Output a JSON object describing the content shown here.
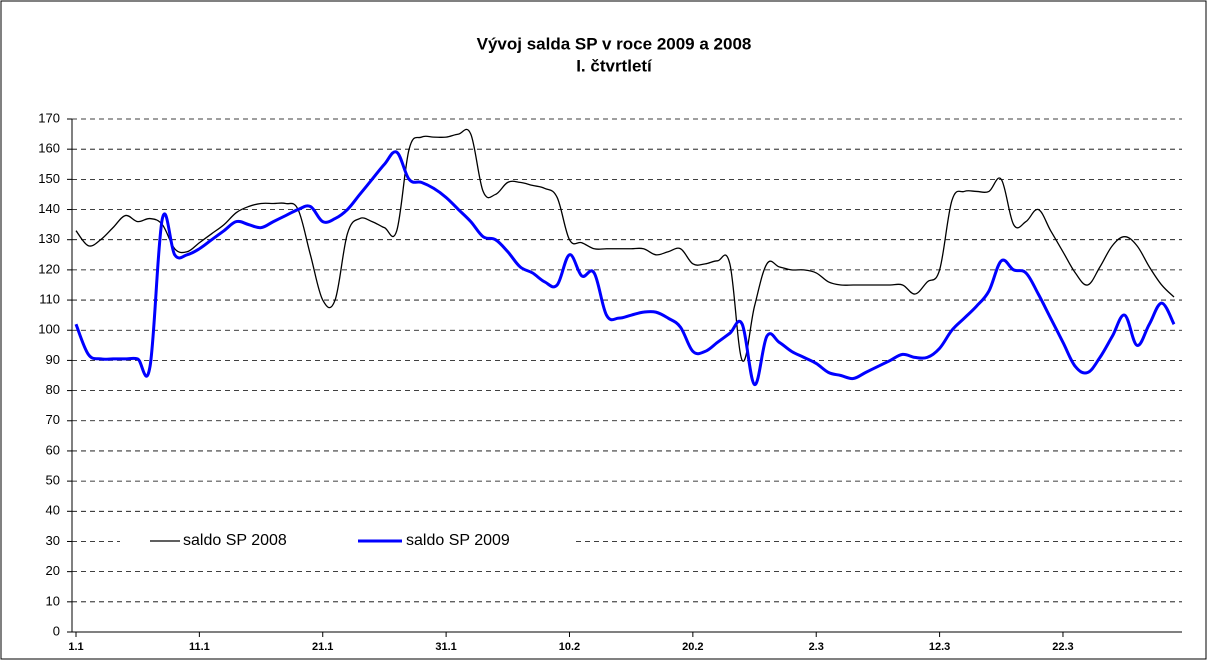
{
  "chart_data": {
    "type": "line",
    "title": "Vývoj salda SP v roce 2009 a 2008",
    "subtitle": "I. čtvrtletí",
    "categories": [
      "1.1",
      null,
      null,
      null,
      null,
      null,
      null,
      null,
      null,
      null,
      "11.1",
      null,
      null,
      null,
      null,
      null,
      null,
      null,
      null,
      null,
      "21.1",
      null,
      null,
      null,
      null,
      null,
      null,
      null,
      null,
      null,
      "31.1",
      null,
      null,
      null,
      null,
      null,
      null,
      null,
      null,
      null,
      "10.2",
      null,
      null,
      null,
      null,
      null,
      null,
      null,
      null,
      null,
      "20.2",
      null,
      null,
      null,
      null,
      null,
      null,
      null,
      null,
      null,
      "2.3",
      null,
      null,
      null,
      null,
      null,
      null,
      null,
      null,
      null,
      "12.3",
      null,
      null,
      null,
      null,
      null,
      null,
      null,
      null,
      null,
      "22.3",
      null,
      null,
      null,
      null,
      null,
      null,
      null,
      null,
      null
    ],
    "series": [
      {
        "name": "saldo SP 2008",
        "color": "#000000",
        "width": 1.3,
        "values": [
          133,
          128,
          130,
          134,
          138,
          136,
          137,
          135,
          127,
          126,
          129,
          132,
          135,
          139,
          141,
          142,
          142,
          142,
          140,
          125,
          110,
          110,
          132,
          137,
          136,
          134,
          133,
          160,
          164,
          164,
          164,
          165,
          165,
          146,
          145,
          149,
          149,
          148,
          147,
          144,
          130,
          129,
          127,
          127,
          127,
          127,
          127,
          125,
          126,
          127,
          122,
          122,
          123,
          122,
          90,
          108,
          122,
          121,
          120,
          120,
          119,
          116,
          115,
          115,
          115,
          115,
          115,
          115,
          112,
          116,
          120,
          143,
          146,
          146,
          146,
          150,
          135,
          136,
          140,
          133,
          126,
          119,
          115,
          121,
          128,
          131,
          128,
          121,
          115,
          111
        ]
      },
      {
        "name": "saldo SP 2009",
        "color": "#0000ff",
        "width": 3,
        "values": [
          102,
          92,
          90.5,
          90.5,
          90.5,
          90.5,
          88,
          137,
          125,
          125,
          127,
          130,
          133,
          136,
          135,
          134,
          136,
          138,
          140,
          141,
          136,
          137,
          140,
          145,
          150,
          155,
          159,
          150,
          149,
          147,
          144,
          140,
          136,
          131,
          130,
          126,
          121,
          119,
          116,
          115,
          125,
          118,
          119,
          105,
          104,
          105,
          106,
          106,
          104,
          101,
          93,
          93,
          96,
          99,
          102,
          82,
          98,
          96,
          93,
          91,
          89,
          86,
          85,
          84,
          86,
          88,
          90,
          92,
          91,
          91,
          94,
          100,
          104,
          108,
          113,
          123,
          120,
          119,
          112,
          104,
          96,
          88,
          86,
          91,
          98,
          105,
          95,
          102,
          109,
          102
        ]
      }
    ],
    "ylim": [
      0,
      170
    ],
    "yticks": [
      0,
      10,
      20,
      30,
      40,
      50,
      60,
      70,
      80,
      90,
      100,
      110,
      120,
      130,
      140,
      150,
      160,
      170
    ],
    "grid": true
  }
}
